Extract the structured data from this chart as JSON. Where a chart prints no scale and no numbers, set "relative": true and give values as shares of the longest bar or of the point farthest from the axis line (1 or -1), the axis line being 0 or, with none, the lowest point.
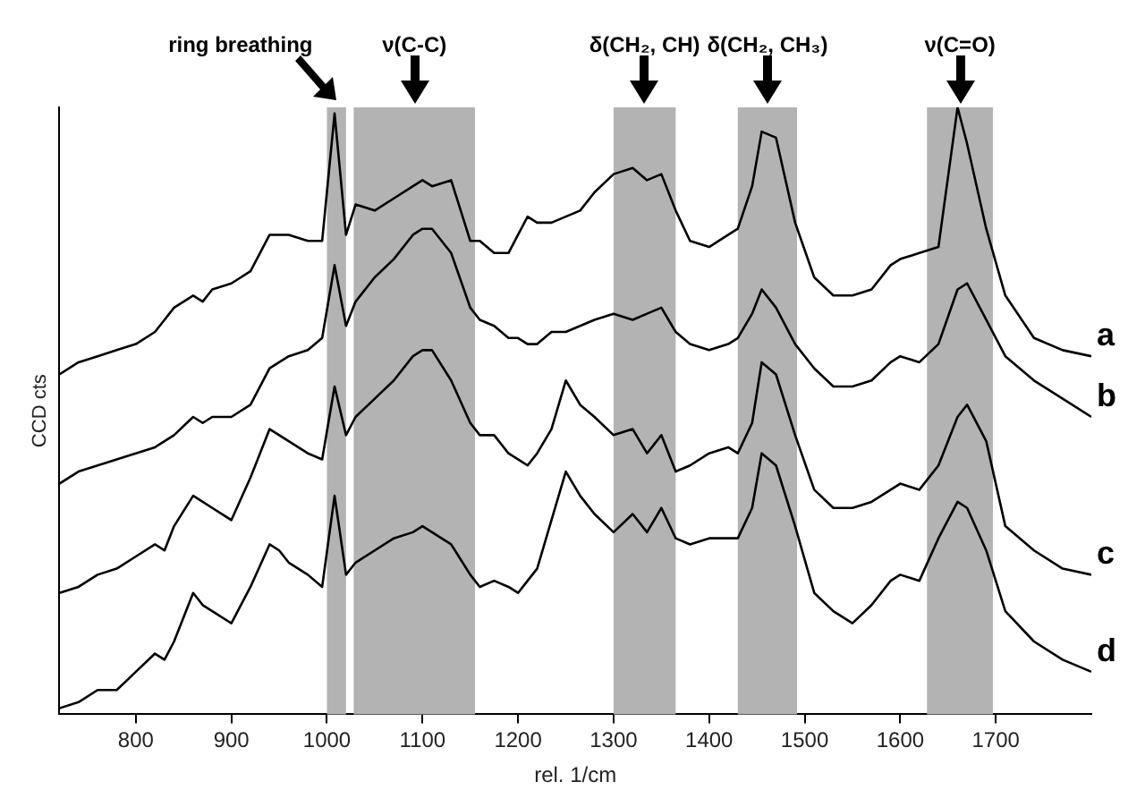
{
  "chart_data": {
    "type": "line",
    "xlabel": "rel. 1/cm",
    "ylabel": "CCD cts",
    "relative": true,
    "grid": false,
    "legend": false,
    "xlim": [
      720,
      1800
    ],
    "xticks": [
      800,
      900,
      1000,
      1100,
      1200,
      1300,
      1400,
      1500,
      1600,
      1700
    ],
    "x": [
      720,
      740,
      760,
      780,
      800,
      820,
      830,
      840,
      860,
      870,
      880,
      900,
      920,
      940,
      950,
      960,
      980,
      995,
      1008,
      1020,
      1030,
      1050,
      1070,
      1090,
      1100,
      1110,
      1130,
      1150,
      1160,
      1175,
      1190,
      1200,
      1210,
      1220,
      1235,
      1250,
      1265,
      1280,
      1300,
      1320,
      1335,
      1350,
      1365,
      1380,
      1400,
      1420,
      1430,
      1445,
      1455,
      1470,
      1490,
      1510,
      1530,
      1550,
      1570,
      1590,
      1600,
      1620,
      1640,
      1660,
      1670,
      1690,
      1710,
      1740,
      1770,
      1800
    ],
    "series": [
      {
        "name": "a",
        "color": "#000000",
        "values": [
          0.56,
          0.58,
          0.59,
          0.6,
          0.61,
          0.63,
          0.65,
          0.67,
          0.69,
          0.68,
          0.7,
          0.71,
          0.73,
          0.79,
          0.79,
          0.79,
          0.78,
          0.78,
          0.99,
          0.79,
          0.84,
          0.83,
          0.85,
          0.87,
          0.88,
          0.87,
          0.88,
          0.78,
          0.78,
          0.76,
          0.76,
          0.79,
          0.82,
          0.81,
          0.81,
          0.82,
          0.83,
          0.86,
          0.89,
          0.9,
          0.88,
          0.89,
          0.83,
          0.78,
          0.77,
          0.79,
          0.8,
          0.87,
          0.96,
          0.95,
          0.81,
          0.72,
          0.69,
          0.69,
          0.7,
          0.74,
          0.75,
          0.76,
          0.77,
          1.0,
          0.94,
          0.8,
          0.69,
          0.62,
          0.6,
          0.59
        ]
      },
      {
        "name": "b",
        "color": "#000000",
        "values": [
          0.38,
          0.4,
          0.41,
          0.42,
          0.43,
          0.44,
          0.45,
          0.46,
          0.49,
          0.48,
          0.49,
          0.49,
          0.51,
          0.57,
          0.58,
          0.59,
          0.6,
          0.62,
          0.74,
          0.64,
          0.68,
          0.72,
          0.75,
          0.79,
          0.8,
          0.8,
          0.76,
          0.67,
          0.65,
          0.64,
          0.62,
          0.62,
          0.61,
          0.61,
          0.63,
          0.63,
          0.64,
          0.65,
          0.66,
          0.65,
          0.66,
          0.67,
          0.63,
          0.61,
          0.6,
          0.61,
          0.62,
          0.66,
          0.7,
          0.67,
          0.61,
          0.57,
          0.54,
          0.54,
          0.55,
          0.58,
          0.59,
          0.58,
          0.61,
          0.7,
          0.71,
          0.65,
          0.59,
          0.55,
          0.52,
          0.49
        ]
      },
      {
        "name": "c",
        "color": "#000000",
        "values": [
          0.2,
          0.21,
          0.23,
          0.24,
          0.26,
          0.28,
          0.27,
          0.31,
          0.36,
          0.35,
          0.34,
          0.32,
          0.39,
          0.47,
          0.46,
          0.45,
          0.43,
          0.42,
          0.54,
          0.46,
          0.49,
          0.52,
          0.55,
          0.59,
          0.6,
          0.6,
          0.55,
          0.48,
          0.46,
          0.46,
          0.43,
          0.42,
          0.41,
          0.43,
          0.47,
          0.55,
          0.51,
          0.49,
          0.46,
          0.47,
          0.43,
          0.46,
          0.4,
          0.41,
          0.43,
          0.44,
          0.43,
          0.48,
          0.58,
          0.56,
          0.46,
          0.37,
          0.34,
          0.34,
          0.35,
          0.37,
          0.38,
          0.37,
          0.41,
          0.49,
          0.51,
          0.45,
          0.31,
          0.27,
          0.24,
          0.23
        ]
      },
      {
        "name": "d",
        "color": "#000000",
        "values": [
          0.01,
          0.02,
          0.04,
          0.04,
          0.07,
          0.1,
          0.09,
          0.12,
          0.2,
          0.18,
          0.17,
          0.15,
          0.21,
          0.28,
          0.27,
          0.25,
          0.23,
          0.21,
          0.36,
          0.23,
          0.25,
          0.27,
          0.29,
          0.3,
          0.31,
          0.3,
          0.28,
          0.23,
          0.21,
          0.22,
          0.21,
          0.2,
          0.22,
          0.24,
          0.32,
          0.4,
          0.36,
          0.33,
          0.3,
          0.33,
          0.3,
          0.34,
          0.29,
          0.28,
          0.29,
          0.29,
          0.29,
          0.34,
          0.43,
          0.41,
          0.31,
          0.2,
          0.17,
          0.15,
          0.18,
          0.22,
          0.23,
          0.22,
          0.29,
          0.35,
          0.34,
          0.27,
          0.17,
          0.12,
          0.09,
          0.07
        ]
      }
    ],
    "bands": [
      {
        "axis": "x",
        "from": 1000,
        "to": 1020,
        "label": "ring breathing",
        "color": "#b3b3b3"
      },
      {
        "axis": "x",
        "from": 1028,
        "to": 1155,
        "label": "ν(C-C)",
        "color": "#b3b3b3"
      },
      {
        "axis": "x",
        "from": 1300,
        "to": 1365,
        "label": "δ(CH₂, CH)",
        "color": "#b3b3b3"
      },
      {
        "axis": "x",
        "from": 1430,
        "to": 1492,
        "label": "δ(CH₂, CH₃)",
        "color": "#b3b3b3"
      },
      {
        "axis": "x",
        "from": 1628,
        "to": 1697,
        "label": "ν(C=O)",
        "color": "#b3b3b3"
      }
    ]
  }
}
